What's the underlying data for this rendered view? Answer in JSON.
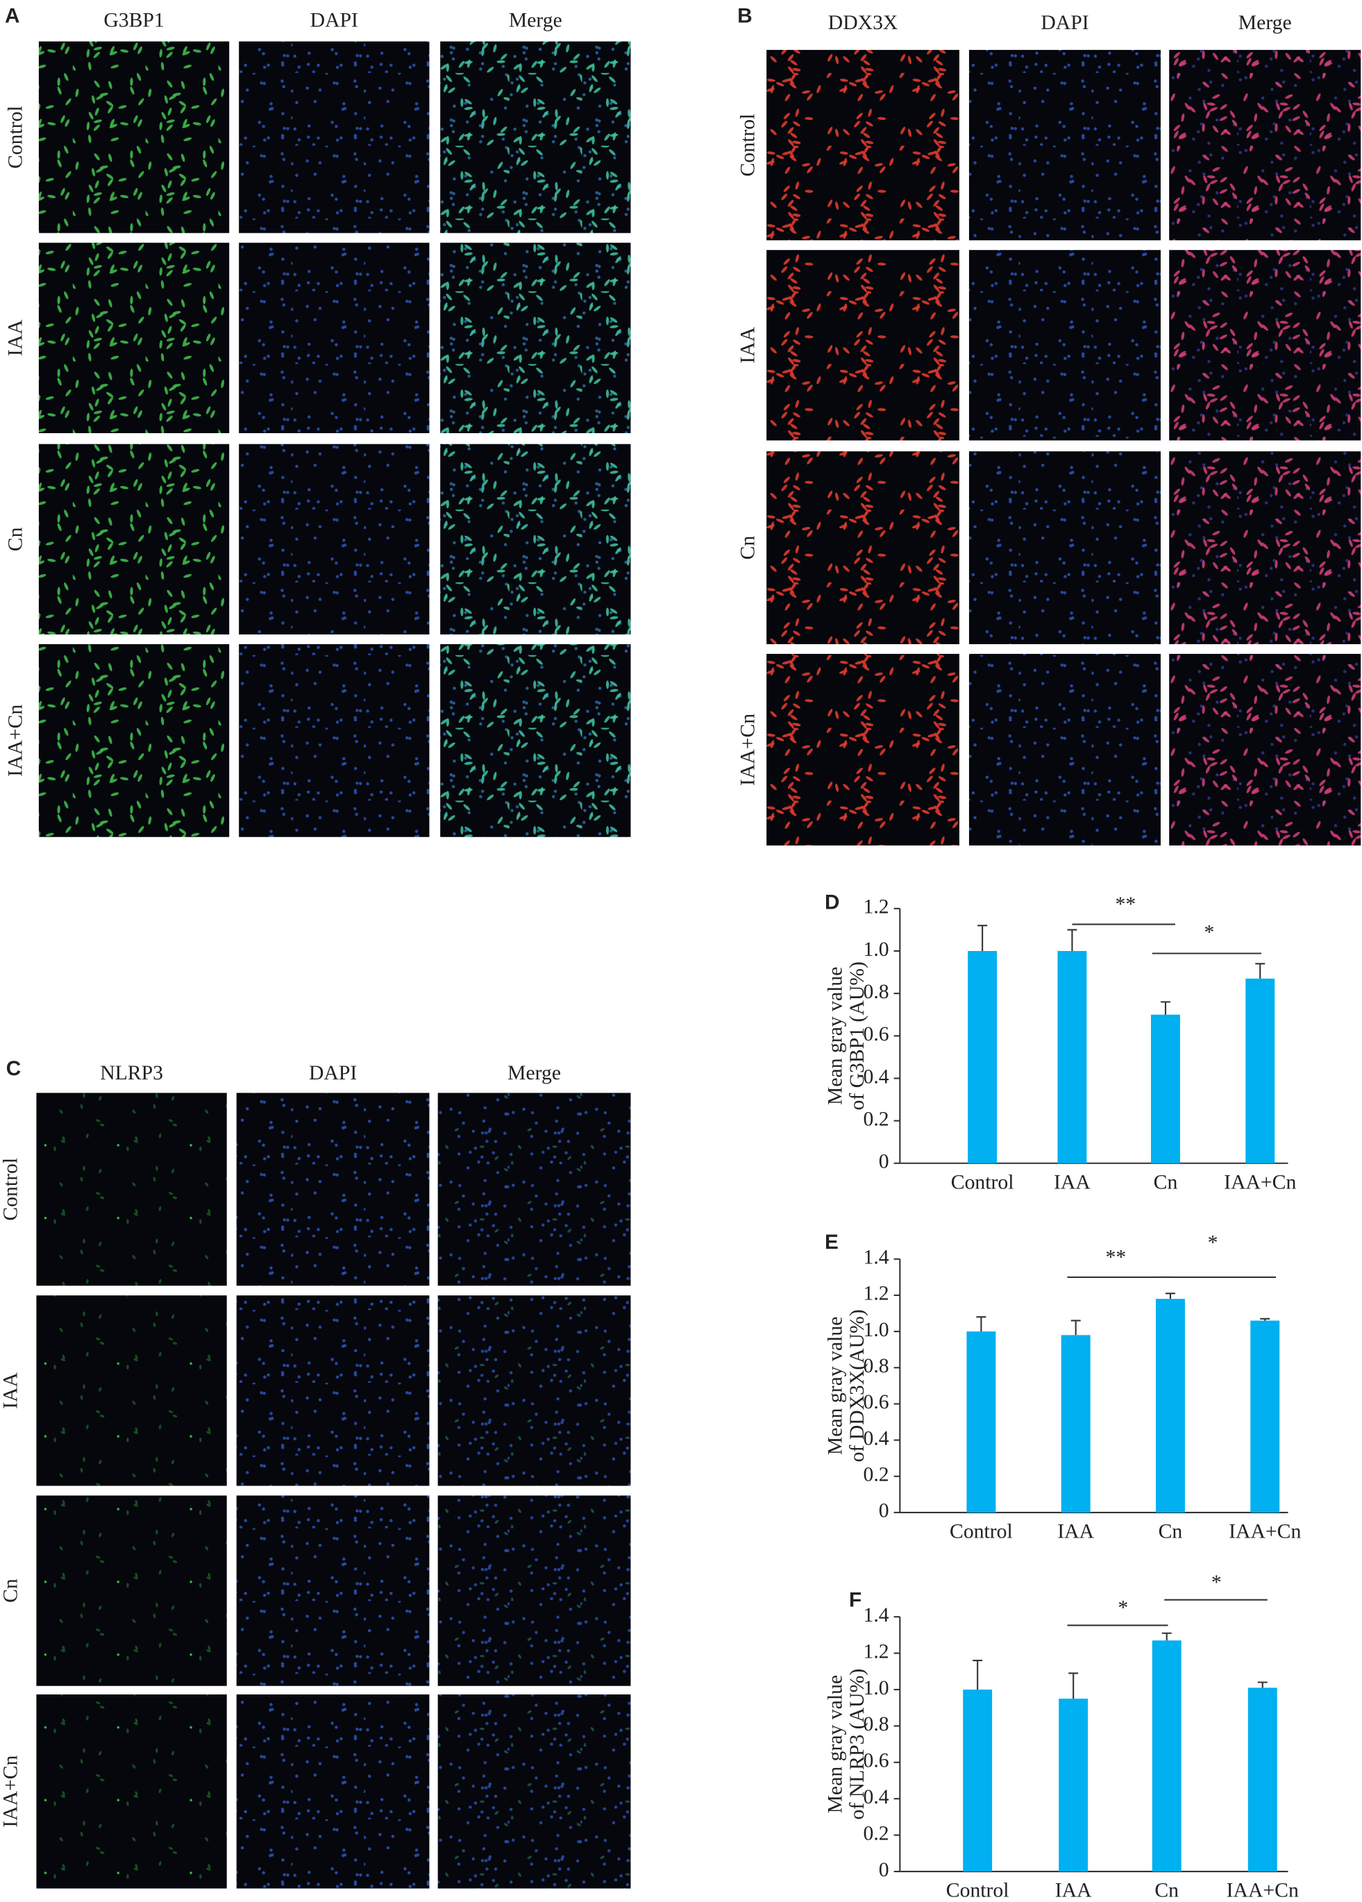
{
  "panels": [
    {
      "label": "A",
      "columns": [
        "G3BP1",
        "DAPI",
        "Merge"
      ],
      "rows": [
        "Control",
        "IAA",
        "Cn",
        "IAA+Cn"
      ]
    },
    {
      "label": "B",
      "columns": [
        "DDX3X",
        "DAPI",
        "Merge"
      ],
      "rows": [
        "Control",
        "IAA",
        "Cn",
        "IAA+Cn"
      ]
    },
    {
      "label": "C",
      "columns": [
        "NLRP3",
        "DAPI",
        "Merge"
      ],
      "rows": [
        "Control",
        "IAA",
        "Cn",
        "IAA+Cn"
      ]
    }
  ],
  "chart_data": [
    {
      "type": "bar",
      "label": "D",
      "ylabel": [
        "Mean gray value",
        "of G3BP1 (AU%)"
      ],
      "categories": [
        "Control",
        "IAA",
        "Cn",
        "IAA+Cn"
      ],
      "values": [
        1.0,
        1.0,
        0.7,
        0.87
      ],
      "errors": [
        0.12,
        0.1,
        0.06,
        0.07
      ],
      "color": "#00b0f0",
      "ylim": [
        0,
        1.2
      ],
      "yticks": [
        0,
        0.2,
        0.4,
        0.6,
        0.8,
        {
          "value": 1,
          "label": "1.0"
        },
        1.2
      ],
      "annotations": [
        "**",
        "*"
      ]
    },
    {
      "type": "bar",
      "label": "E",
      "ylabel": [
        "Mean gray value",
        "of DDX3X(AU%)"
      ],
      "categories": [
        "Control",
        "IAA",
        "Cn",
        "IAA+Cn"
      ],
      "values": [
        1.0,
        0.98,
        1.18,
        1.06
      ],
      "errors": [
        0.08,
        0.08,
        0.03,
        0.01
      ],
      "color": "#00b0f0",
      "ylim": [
        0,
        1.4
      ],
      "yticks": [
        0,
        0.2,
        0.4,
        0.6,
        0.8,
        {
          "value": 1,
          "label": "1.0"
        },
        1.2,
        1.4
      ],
      "annotations": [
        "**",
        "*"
      ]
    },
    {
      "type": "bar",
      "label": "F",
      "ylabel": [
        "Mean gray value",
        "of NLRP3 (AU%)"
      ],
      "categories": [
        "Control",
        "IAA",
        "Cn",
        "IAA+Cn"
      ],
      "values": [
        1.0,
        0.95,
        1.27,
        1.01
      ],
      "errors": [
        0.16,
        0.14,
        0.04,
        0.03
      ],
      "color": "#00b0f0",
      "ylim": [
        0,
        1.4
      ],
      "yticks": [
        0,
        0.2,
        0.4,
        0.6,
        0.8,
        {
          "value": 1,
          "label": "1.0"
        },
        1.2,
        1.4
      ],
      "annotations": [
        "*",
        "*"
      ]
    }
  ]
}
